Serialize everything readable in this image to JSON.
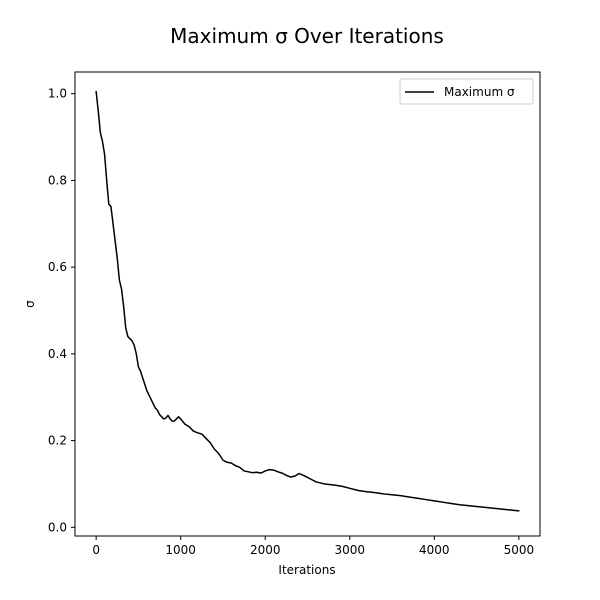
{
  "chart_data": {
    "type": "line",
    "title": "Maximum σ Over Iterations",
    "xlabel": "Iterations",
    "ylabel": "σ",
    "xlim": [
      -250,
      5250
    ],
    "ylim": [
      -0.02,
      1.05
    ],
    "xticks": [
      0,
      1000,
      2000,
      3000,
      4000,
      5000
    ],
    "yticks": [
      0.0,
      0.2,
      0.4,
      0.6,
      0.8,
      1.0
    ],
    "xtick_labels": [
      "0",
      "1000",
      "2000",
      "3000",
      "4000",
      "5000"
    ],
    "ytick_labels": [
      "0.0",
      "0.2",
      "0.4",
      "0.6",
      "0.8",
      "1.0"
    ],
    "grid": false,
    "legend_position": "top-right",
    "series": [
      {
        "name": "Maximum σ",
        "color": "#000000",
        "x": [
          0,
          25,
          50,
          75,
          100,
          125,
          150,
          175,
          200,
          225,
          250,
          275,
          300,
          325,
          350,
          375,
          400,
          425,
          450,
          475,
          500,
          525,
          550,
          575,
          600,
          625,
          650,
          675,
          700,
          725,
          750,
          775,
          800,
          825,
          850,
          875,
          900,
          925,
          950,
          975,
          1000,
          1050,
          1100,
          1150,
          1200,
          1250,
          1300,
          1350,
          1400,
          1450,
          1500,
          1550,
          1600,
          1650,
          1700,
          1750,
          1800,
          1850,
          1900,
          1950,
          2000,
          2050,
          2100,
          2150,
          2200,
          2250,
          2300,
          2350,
          2400,
          2450,
          2500,
          2550,
          2600,
          2700,
          2800,
          2900,
          3000,
          3100,
          3200,
          3300,
          3400,
          3500,
          3600,
          3700,
          3800,
          3900,
          4000,
          4100,
          4200,
          4300,
          4400,
          4500,
          4600,
          4700,
          4800,
          4900,
          5000
        ],
        "y": [
          1.005,
          0.96,
          0.91,
          0.89,
          0.86,
          0.8,
          0.745,
          0.74,
          0.7,
          0.66,
          0.62,
          0.57,
          0.55,
          0.51,
          0.46,
          0.44,
          0.435,
          0.43,
          0.42,
          0.4,
          0.37,
          0.36,
          0.345,
          0.33,
          0.315,
          0.305,
          0.295,
          0.285,
          0.275,
          0.27,
          0.26,
          0.255,
          0.25,
          0.252,
          0.258,
          0.25,
          0.245,
          0.245,
          0.25,
          0.255,
          0.25,
          0.238,
          0.232,
          0.222,
          0.218,
          0.215,
          0.205,
          0.195,
          0.18,
          0.17,
          0.155,
          0.15,
          0.148,
          0.142,
          0.138,
          0.13,
          0.128,
          0.126,
          0.127,
          0.125,
          0.13,
          0.133,
          0.132,
          0.128,
          0.125,
          0.12,
          0.116,
          0.118,
          0.124,
          0.12,
          0.115,
          0.11,
          0.105,
          0.1,
          0.098,
          0.095,
          0.09,
          0.085,
          0.082,
          0.08,
          0.077,
          0.075,
          0.073,
          0.07,
          0.067,
          0.064,
          0.061,
          0.058,
          0.055,
          0.052,
          0.05,
          0.048,
          0.046,
          0.044,
          0.042,
          0.04,
          0.038
        ]
      }
    ]
  }
}
